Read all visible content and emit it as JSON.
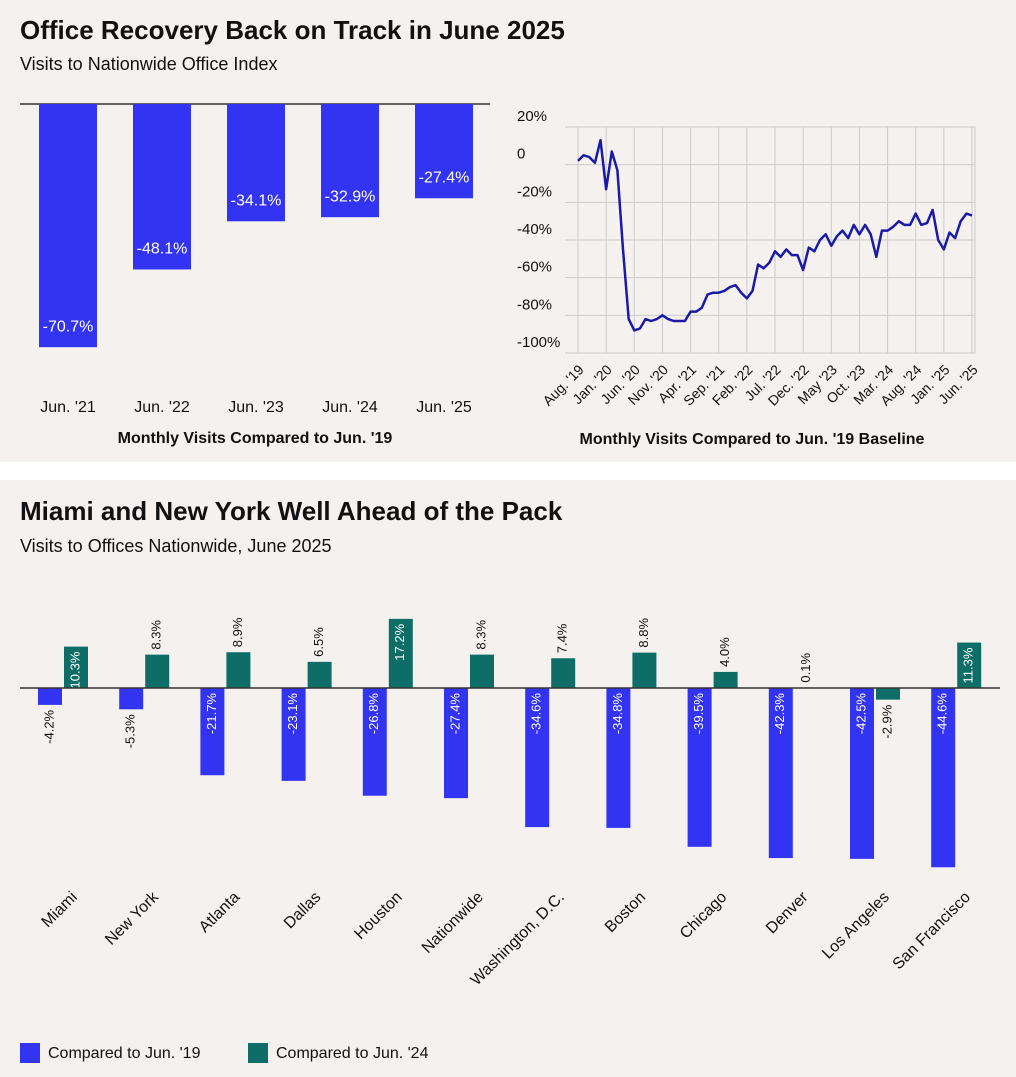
{
  "chart_data": [
    {
      "type": "bar",
      "title": "Office Recovery Back on Track in June 2025",
      "subtitle": "Visits to Nationwide Office Index",
      "categories": [
        "Jun. '21",
        "Jun. '22",
        "Jun. '23",
        "Jun. '24",
        "Jun. '25"
      ],
      "values": [
        -70.7,
        -48.1,
        -34.1,
        -32.9,
        -27.4
      ],
      "value_labels": [
        "-70.7%",
        "-48.1%",
        "-34.1%",
        "-32.9%",
        "-27.4%"
      ],
      "color": "#3333f2",
      "xlabel": "Monthly Visits Compared to Jun. '19"
    },
    {
      "type": "line",
      "xlabel": "Monthly Visits Compared to Jun. '19 Baseline",
      "categories": [
        "Aug. '19",
        null,
        null,
        null,
        null,
        "Jan. '20",
        null,
        null,
        null,
        null,
        "Jun. '20",
        null,
        null,
        null,
        null,
        "Nov. '20",
        null,
        null,
        null,
        null,
        "Apr. '21",
        null,
        null,
        null,
        null,
        "Sep. '21",
        null,
        null,
        null,
        null,
        "Feb. '22",
        null,
        null,
        null,
        null,
        "Jul. '22",
        null,
        null,
        null,
        null,
        "Dec. '22",
        null,
        null,
        null,
        null,
        "May '23",
        null,
        null,
        null,
        null,
        "Oct. '23",
        null,
        null,
        null,
        null,
        "Mar. '24",
        null,
        null,
        null,
        null,
        "Aug. '24",
        null,
        null,
        null,
        null,
        "Jan. '25",
        null,
        null,
        null,
        null,
        "Jun. '25"
      ],
      "values": [
        2,
        5,
        4,
        1,
        13,
        -13,
        7,
        -3,
        -45,
        -82,
        -88,
        -87,
        -82,
        -83,
        -82,
        -80,
        -82,
        -83,
        -83,
        -83,
        -78,
        -78,
        -76,
        -69,
        -68,
        -68,
        -67,
        -65,
        -64,
        -68,
        -71,
        -67,
        -53,
        -55,
        -52,
        -46,
        -49,
        -45,
        -48,
        -48,
        -56,
        -44,
        -46,
        -40,
        -37,
        -43,
        -38,
        -35,
        -39,
        -32,
        -37,
        -32,
        -37,
        -49,
        -35,
        -35,
        -33,
        -30,
        -32,
        -32,
        -26,
        -32,
        -31,
        -24,
        -40,
        -45,
        -36,
        -39,
        -30,
        -26,
        -27
      ],
      "color": "#1a1aa8",
      "ylim": [
        -100,
        20
      ],
      "yticks": [
        {
          "value": 20,
          "label": "20%"
        },
        0,
        {
          "value": -20,
          "label": "-20%"
        },
        {
          "value": -40,
          "label": "-40%"
        },
        {
          "value": -60,
          "label": "-60%"
        },
        {
          "value": -80,
          "label": "-80%"
        },
        {
          "value": -100,
          "label": "-100%"
        }
      ],
      "grid": true
    },
    {
      "type": "grouped_bar",
      "title": "Miami and New York Well Ahead of the Pack",
      "subtitle": "Visits to Offices Nationwide, June 2025",
      "categories": [
        "Miami",
        "New York",
        "Atlanta",
        "Dallas",
        "Houston",
        "Nationwide",
        "Washington, D.C.",
        "Boston",
        "Chicago",
        "Denver",
        "Los Angeles",
        "San Francisco"
      ],
      "series": [
        {
          "name": "Compared to Jun. '19",
          "color": "#3333f2",
          "values": [
            -4.2,
            -5.3,
            -21.7,
            -23.1,
            -26.8,
            -27.4,
            -34.6,
            -34.8,
            -39.5,
            -42.3,
            -42.5,
            -44.6
          ],
          "value_labels": [
            "-4.2%",
            "-5.3%",
            "-21.7%",
            "-23.1%",
            "-26.8%",
            "-27.4%",
            "-34.6%",
            "-34.8%",
            "-39.5%",
            "-42.3%",
            "-42.5%",
            "-44.6%"
          ]
        },
        {
          "name": "Compared to Jun. '24",
          "color": "#0e6e67",
          "values": [
            10.3,
            8.3,
            8.9,
            6.5,
            17.2,
            8.3,
            7.4,
            8.8,
            4.0,
            0.1,
            -2.9,
            11.3
          ],
          "value_labels": [
            "10.3%",
            "8.3%",
            "8.9%",
            "6.5%",
            "17.2%",
            "8.3%",
            "7.4%",
            "8.8%",
            "4.0%",
            "0.1%",
            "-2.9%",
            "11.3%"
          ]
        }
      ],
      "legend": "bottom-left"
    }
  ]
}
